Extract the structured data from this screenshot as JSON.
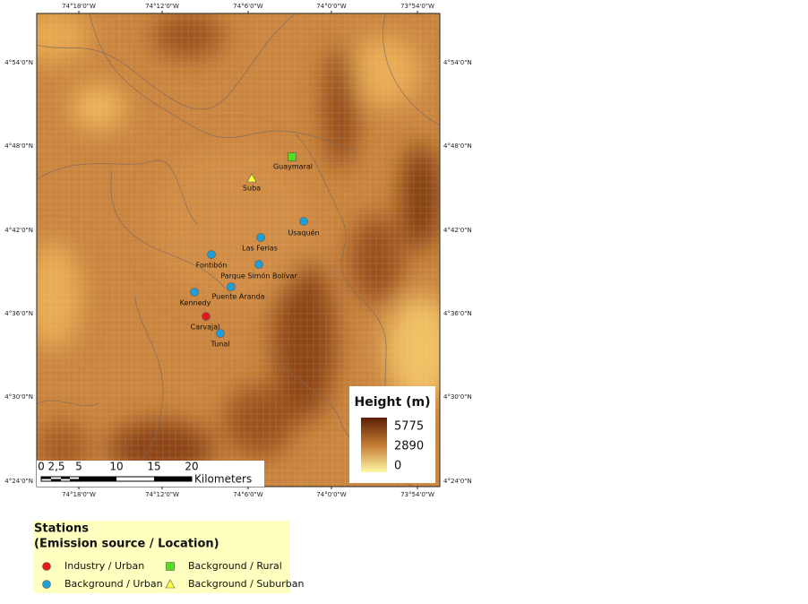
{
  "map": {
    "lon_labels": [
      "74°18'0\"W",
      "74°12'0\"W",
      "74°6'0\"W",
      "74°0'0\"W",
      "73°54'0\"W"
    ],
    "lat_labels": [
      "4°54'0\"N",
      "4°48'0\"N",
      "4°42'0\"N",
      "4°36'0\"N",
      "4°30'0\"N",
      "4°24'0\"N"
    ],
    "stations": [
      "Guaymaral",
      "Suba",
      "Usaquén",
      "Las Ferias",
      "Fontibón",
      "Parque Simón Bolívar",
      "Puente Aranda",
      "Kennedy",
      "Carvajal",
      "Tunal"
    ],
    "height_legend": {
      "title": "Height (m)",
      "max": "5775",
      "mid": "2890",
      "min": "0"
    },
    "scale_bar": {
      "ticks": [
        "0",
        "2,5",
        "5",
        "10",
        "15",
        "20"
      ],
      "unit": "Kilometers"
    }
  },
  "legend": {
    "title": "Stations",
    "subtitle": "(Emission source / Location)",
    "entries": [
      "Industry / Urban",
      "Background / Rural",
      "Background / Urban",
      "Background / Suburban"
    ]
  }
}
